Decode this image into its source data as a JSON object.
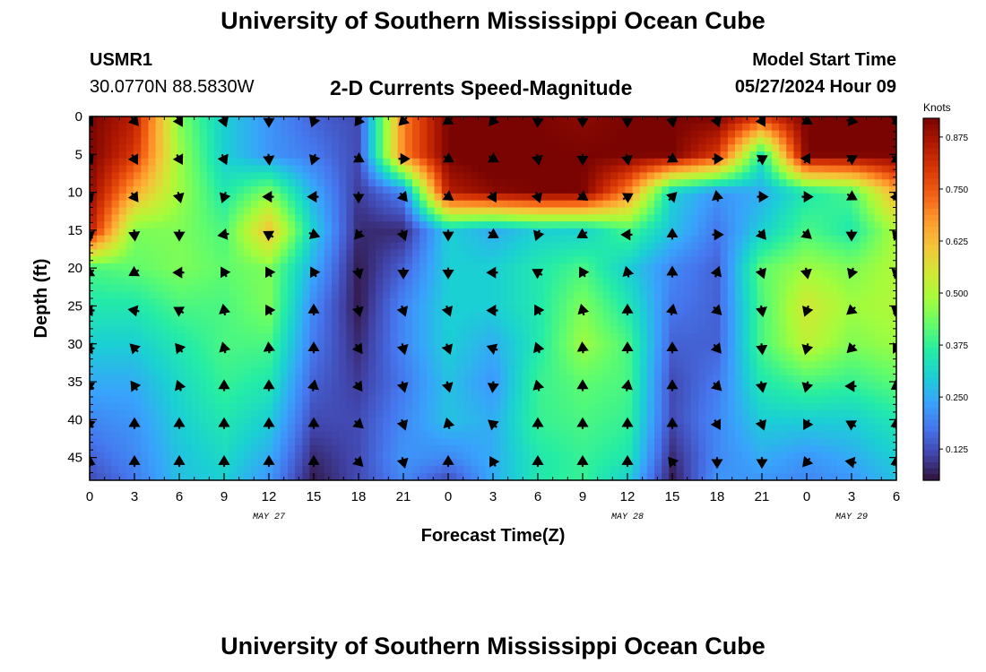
{
  "page": {
    "title": "University of Southern Mississippi Ocean Cube",
    "footer_title": "University of Southern Mississippi Ocean Cube"
  },
  "station": {
    "id": "USMR1",
    "coords": "30.0770N  88.5830W"
  },
  "model_start": {
    "label": "Model Start Time",
    "value": "05/27/2024 Hour 09"
  },
  "chart_data": {
    "type": "heatmap",
    "title": "2-D Currents Speed-Magnitude",
    "xlabel": "Forecast Time(Z)",
    "ylabel": "Depth (ft)",
    "x_hours": [
      0,
      54
    ],
    "ylim": [
      0,
      48
    ],
    "y_inverted": true,
    "x_ticks": [
      "0",
      "3",
      "6",
      "9",
      "12",
      "15",
      "18",
      "21",
      "0",
      "3",
      "6",
      "9",
      "12",
      "15",
      "18",
      "21",
      "0",
      "3",
      "6"
    ],
    "y_ticks": [
      0,
      5,
      10,
      15,
      20,
      25,
      30,
      35,
      40,
      45
    ],
    "date_labels": [
      {
        "text": "MAY 27",
        "hour": 12
      },
      {
        "text": "MAY 28",
        "hour": 36
      },
      {
        "text": "MAY 29",
        "hour": 51
      }
    ],
    "colorbar": {
      "label": "Knots",
      "range": [
        0.05,
        0.92
      ],
      "ticks": [
        "0.875",
        "0.750",
        "0.625",
        "0.500",
        "0.375",
        "0.250",
        "0.125"
      ],
      "tick_values": [
        0.875,
        0.75,
        0.625,
        0.5,
        0.375,
        0.25,
        0.125
      ],
      "colors": [
        "#30123b",
        "#4145ab",
        "#4675ed",
        "#39a2fc",
        "#1bcfd4",
        "#24eca6",
        "#61fc6c",
        "#a4fc3b",
        "#d1e834",
        "#f3c63a",
        "#fe9b2d",
        "#f36315",
        "#d93806",
        "#b11901",
        "#7a0402"
      ]
    },
    "speed_hours": [
      0,
      3,
      6,
      9,
      12,
      15,
      18,
      21,
      24,
      27,
      30,
      33,
      36,
      39,
      42,
      45,
      48,
      51,
      54
    ],
    "speed_depths": [
      0,
      5,
      10,
      15,
      20,
      25,
      30,
      35,
      40,
      45,
      48
    ],
    "speed": [
      [
        0.92,
        0.85,
        0.45,
        0.3,
        0.22,
        0.15,
        0.12,
        0.7,
        0.92,
        0.95,
        0.92,
        0.9,
        0.92,
        0.92,
        0.92,
        0.8,
        0.92,
        0.92,
        0.92
      ],
      [
        0.92,
        0.8,
        0.48,
        0.3,
        0.22,
        0.18,
        0.12,
        0.7,
        0.92,
        0.95,
        0.92,
        0.92,
        0.92,
        0.92,
        0.8,
        0.35,
        0.92,
        0.92,
        0.92
      ],
      [
        0.9,
        0.65,
        0.48,
        0.35,
        0.45,
        0.25,
        0.1,
        0.2,
        0.85,
        0.9,
        0.92,
        0.92,
        0.7,
        0.3,
        0.22,
        0.25,
        0.35,
        0.4,
        0.65
      ],
      [
        0.85,
        0.45,
        0.45,
        0.4,
        0.62,
        0.3,
        0.08,
        0.08,
        0.3,
        0.25,
        0.3,
        0.3,
        0.4,
        0.28,
        0.18,
        0.3,
        0.4,
        0.35,
        0.5
      ],
      [
        0.4,
        0.42,
        0.45,
        0.42,
        0.45,
        0.25,
        0.06,
        0.15,
        0.3,
        0.3,
        0.35,
        0.4,
        0.3,
        0.2,
        0.15,
        0.42,
        0.48,
        0.45,
        0.5
      ],
      [
        0.35,
        0.35,
        0.4,
        0.4,
        0.45,
        0.2,
        0.06,
        0.2,
        0.3,
        0.3,
        0.35,
        0.45,
        0.35,
        0.18,
        0.15,
        0.4,
        0.55,
        0.48,
        0.5
      ],
      [
        0.3,
        0.3,
        0.35,
        0.4,
        0.4,
        0.18,
        0.08,
        0.2,
        0.3,
        0.25,
        0.35,
        0.48,
        0.4,
        0.15,
        0.15,
        0.4,
        0.52,
        0.45,
        0.48
      ],
      [
        0.25,
        0.25,
        0.32,
        0.38,
        0.35,
        0.15,
        0.1,
        0.18,
        0.28,
        0.22,
        0.38,
        0.42,
        0.4,
        0.12,
        0.18,
        0.35,
        0.4,
        0.38,
        0.42
      ],
      [
        0.2,
        0.22,
        0.3,
        0.35,
        0.3,
        0.12,
        0.12,
        0.2,
        0.28,
        0.25,
        0.38,
        0.4,
        0.38,
        0.12,
        0.2,
        0.3,
        0.3,
        0.3,
        0.35
      ],
      [
        0.15,
        0.2,
        0.28,
        0.32,
        0.25,
        0.08,
        0.12,
        0.22,
        0.2,
        0.25,
        0.35,
        0.38,
        0.35,
        0.08,
        0.2,
        0.25,
        0.22,
        0.25,
        0.3
      ],
      [
        0.12,
        0.18,
        0.28,
        0.3,
        0.22,
        0.06,
        0.12,
        0.2,
        0.12,
        0.25,
        0.35,
        0.38,
        0.3,
        0.06,
        0.22,
        0.22,
        0.2,
        0.22,
        0.28
      ]
    ],
    "vector_hours": [
      0,
      3,
      6,
      9,
      12,
      15,
      18,
      21,
      24,
      27,
      30,
      33,
      36,
      39,
      42,
      45,
      48,
      51,
      54
    ],
    "vector_depths": [
      0,
      5,
      10,
      15,
      20,
      25,
      30,
      35,
      40,
      45
    ],
    "vectors_deg": [
      [
        150,
        140,
        150,
        160,
        180,
        200,
        215,
        225,
        235,
        220,
        185,
        180,
        180,
        170,
        160,
        150,
        120,
        100,
        60
      ],
      [
        155,
        150,
        150,
        155,
        175,
        200,
        120,
        90,
        120,
        120,
        170,
        180,
        170,
        120,
        90,
        60,
        30,
        60,
        120
      ],
      [
        160,
        145,
        165,
        200,
        270,
        270,
        180,
        140,
        125,
        150,
        160,
        125,
        60,
        45,
        350,
        90,
        90,
        120,
        150
      ],
      [
        170,
        175,
        180,
        260,
        300,
        110,
        220,
        160,
        180,
        120,
        200,
        240,
        270,
        0,
        90,
        140,
        130,
        180,
        200
      ],
      [
        240,
        240,
        270,
        330,
        330,
        330,
        165,
        180,
        180,
        270,
        300,
        330,
        345,
        0,
        20,
        160,
        170,
        200,
        195
      ],
      [
        270,
        280,
        300,
        350,
        330,
        0,
        165,
        160,
        160,
        270,
        330,
        345,
        0,
        10,
        135,
        170,
        200,
        230,
        310
      ],
      [
        270,
        315,
        320,
        345,
        355,
        0,
        145,
        165,
        160,
        290,
        340,
        355,
        0,
        0,
        140,
        175,
        195,
        225,
        330
      ],
      [
        300,
        325,
        340,
        0,
        0,
        10,
        145,
        165,
        165,
        185,
        345,
        0,
        10,
        0,
        135,
        170,
        195,
        270,
        355
      ],
      [
        310,
        0,
        0,
        0,
        0,
        0,
        130,
        160,
        345,
        310,
        0,
        0,
        0,
        0,
        150,
        160,
        210,
        300,
        0
      ],
      [
        0,
        0,
        0,
        0,
        0,
        0,
        135,
        165,
        0,
        330,
        0,
        0,
        0,
        320,
        180,
        180,
        220,
        280,
        0
      ]
    ]
  }
}
